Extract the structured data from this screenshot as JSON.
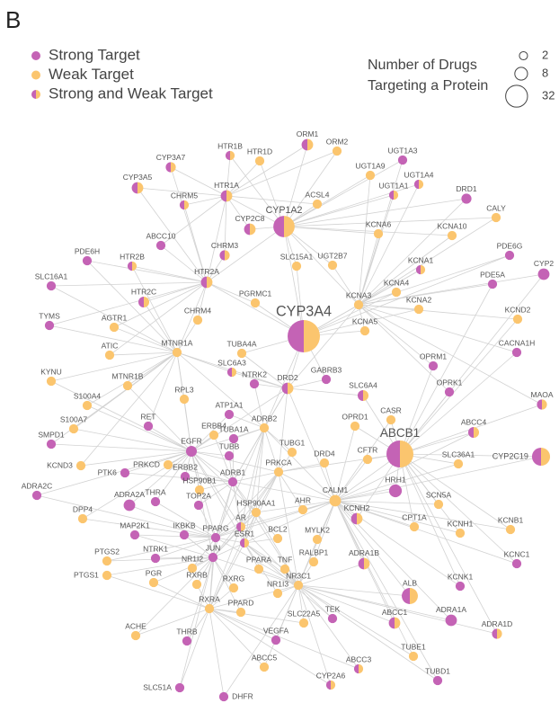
{
  "panel": "B",
  "colors": {
    "strong": "#c463b5",
    "weak": "#fbc56e"
  },
  "legend": {
    "kinds": [
      {
        "label": "Strong Target",
        "kind": "strong"
      },
      {
        "label": "Weak Target",
        "kind": "weak"
      },
      {
        "label": "Strong and Weak Target",
        "kind": "both"
      }
    ],
    "size_title": [
      "Number of Drugs",
      "Targeting a Protein"
    ],
    "sizes": [
      2,
      8,
      32
    ]
  },
  "nodes": [
    {
      "label": "CYP3A7",
      "kind": "both",
      "drugs": 4
    },
    {
      "label": "CYP3A5",
      "kind": "both",
      "drugs": 6
    },
    {
      "label": "HTR1B",
      "kind": "both",
      "drugs": 3
    },
    {
      "label": "HTR1D",
      "kind": "weak",
      "drugs": 3
    },
    {
      "label": "ORM1",
      "kind": "both",
      "drugs": 6
    },
    {
      "label": "ORM2",
      "kind": "weak",
      "drugs": 3
    },
    {
      "label": "UGT1A3",
      "kind": "strong",
      "drugs": 3
    },
    {
      "label": "UGT1A9",
      "kind": "weak",
      "drugs": 3
    },
    {
      "label": "UGT1A4",
      "kind": "both",
      "drugs": 3
    },
    {
      "label": "UGT1A1",
      "kind": "both",
      "drugs": 3
    },
    {
      "label": "DRD1",
      "kind": "strong",
      "drugs": 4
    },
    {
      "label": "CALY",
      "kind": "weak",
      "drugs": 3
    },
    {
      "label": "HTR1A",
      "kind": "both",
      "drugs": 6
    },
    {
      "label": "CHRM5",
      "kind": "both",
      "drugs": 3
    },
    {
      "label": "ACSL4",
      "kind": "weak",
      "drugs": 3
    },
    {
      "label": "CYP1A2",
      "kind": "both",
      "drugs": 30
    },
    {
      "label": "CYP2C8",
      "kind": "both",
      "drugs": 6
    },
    {
      "label": "ABCC10",
      "kind": "strong",
      "drugs": 3
    },
    {
      "label": "CHRM3",
      "kind": "both",
      "drugs": 4
    },
    {
      "label": "KCNA6",
      "kind": "weak",
      "drugs": 3
    },
    {
      "label": "KCNA10",
      "kind": "weak",
      "drugs": 3
    },
    {
      "label": "PDE6G",
      "kind": "strong",
      "drugs": 3
    },
    {
      "label": "CYP2",
      "kind": "strong",
      "drugs": 6
    },
    {
      "label": "PDE6H",
      "kind": "strong",
      "drugs": 3
    },
    {
      "label": "HTR2B",
      "kind": "both",
      "drugs": 3
    },
    {
      "label": "SLC15A1",
      "kind": "weak",
      "drugs": 3
    },
    {
      "label": "UGT2B7",
      "kind": "weak",
      "drugs": 3
    },
    {
      "label": "KCNA1",
      "kind": "both",
      "drugs": 3
    },
    {
      "label": "PDE5A",
      "kind": "strong",
      "drugs": 3
    },
    {
      "label": "SLC16A1",
      "kind": "strong",
      "drugs": 3
    },
    {
      "label": "HTR2A",
      "kind": "both",
      "drugs": 6
    },
    {
      "label": "KCNA4",
      "kind": "weak",
      "drugs": 3
    },
    {
      "label": "HTR2C",
      "kind": "both",
      "drugs": 5
    },
    {
      "label": "PGRMC1",
      "kind": "weak",
      "drugs": 3
    },
    {
      "label": "KCNA3",
      "kind": "weak",
      "drugs": 3
    },
    {
      "label": "KCNA2",
      "kind": "weak",
      "drugs": 3
    },
    {
      "label": "KCND2",
      "kind": "weak",
      "drugs": 3
    },
    {
      "label": "TYMS",
      "kind": "strong",
      "drugs": 3
    },
    {
      "label": "AGTR1",
      "kind": "weak",
      "drugs": 3
    },
    {
      "label": "CHRM4",
      "kind": "weak",
      "drugs": 3
    },
    {
      "label": "CYP3A4",
      "kind": "both",
      "drugs": 79
    },
    {
      "label": "KCNA5",
      "kind": "weak",
      "drugs": 3
    },
    {
      "label": "CACNA1H",
      "kind": "strong",
      "drugs": 3
    },
    {
      "label": "MTNR1A",
      "kind": "weak",
      "drugs": 3
    },
    {
      "label": "TUBA4A",
      "kind": "weak",
      "drugs": 3
    },
    {
      "label": "ATIC",
      "kind": "weak",
      "drugs": 3
    },
    {
      "label": "OPRM1",
      "kind": "strong",
      "drugs": 3
    },
    {
      "label": "KYNU",
      "kind": "weak",
      "drugs": 3
    },
    {
      "label": "MTNR1B",
      "kind": "weak",
      "drugs": 3
    },
    {
      "label": "SLC6A3",
      "kind": "both",
      "drugs": 3
    },
    {
      "label": "NTRK2",
      "kind": "strong",
      "drugs": 3
    },
    {
      "label": "DRD2",
      "kind": "both",
      "drugs": 6
    },
    {
      "label": "GABRB3",
      "kind": "strong",
      "drugs": 3
    },
    {
      "label": "OPRK1",
      "kind": "strong",
      "drugs": 3
    },
    {
      "label": "MAOA",
      "kind": "both",
      "drugs": 4
    },
    {
      "label": "S100A4",
      "kind": "weak",
      "drugs": 3
    },
    {
      "label": "RPL3",
      "kind": "weak",
      "drugs": 3
    },
    {
      "label": "ATP1A1",
      "kind": "strong",
      "drugs": 3
    },
    {
      "label": "SLC6A4",
      "kind": "both",
      "drugs": 5
    },
    {
      "label": "S100A7",
      "kind": "weak",
      "drugs": 3
    },
    {
      "label": "RET",
      "kind": "strong",
      "drugs": 3
    },
    {
      "label": "OPRD1",
      "kind": "weak",
      "drugs": 3
    },
    {
      "label": "CASR",
      "kind": "weak",
      "drugs": 3
    },
    {
      "label": "ABCC4",
      "kind": "both",
      "drugs": 5
    },
    {
      "label": "SMPD1",
      "kind": "strong",
      "drugs": 3
    },
    {
      "label": "ERBB4",
      "kind": "weak",
      "drugs": 3
    },
    {
      "label": "TUBA1A",
      "kind": "strong",
      "drugs": 3
    },
    {
      "label": "ADRB2",
      "kind": "weak",
      "drugs": 3
    },
    {
      "label": "TUBG1",
      "kind": "weak",
      "drugs": 3
    },
    {
      "label": "EGFR",
      "kind": "strong",
      "drugs": 5
    },
    {
      "label": "TUBB",
      "kind": "strong",
      "drugs": 3
    },
    {
      "label": "ABCB1",
      "kind": "both",
      "drugs": 52
    },
    {
      "label": "CYP2C19",
      "kind": "both",
      "drugs": 20
    },
    {
      "label": "PTK6",
      "kind": "strong",
      "drugs": 3
    },
    {
      "label": "PRKCD",
      "kind": "weak",
      "drugs": 3
    },
    {
      "label": "KCND3",
      "kind": "weak",
      "drugs": 3
    },
    {
      "label": "PRKCA",
      "kind": "weak",
      "drugs": 3
    },
    {
      "label": "DRD4",
      "kind": "weak",
      "drugs": 3
    },
    {
      "label": "CFTR",
      "kind": "weak",
      "drugs": 3
    },
    {
      "label": "SLC36A1",
      "kind": "weak",
      "drugs": 3
    },
    {
      "label": "ERBB2",
      "kind": "strong",
      "drugs": 3
    },
    {
      "label": "ADRB1",
      "kind": "strong",
      "drugs": 3
    },
    {
      "label": "HRH1",
      "kind": "strong",
      "drugs": 8
    },
    {
      "label": "HSP90B1",
      "kind": "weak",
      "drugs": 3
    },
    {
      "label": "ADRA2C",
      "kind": "strong",
      "drugs": 3
    },
    {
      "label": "ADRA2A",
      "kind": "strong",
      "drugs": 6
    },
    {
      "label": "THRA",
      "kind": "strong",
      "drugs": 3
    },
    {
      "label": "TOP2A",
      "kind": "strong",
      "drugs": 3
    },
    {
      "label": "CALM1",
      "kind": "weak",
      "drugs": 6
    },
    {
      "label": "SCN5A",
      "kind": "weak",
      "drugs": 3
    },
    {
      "label": "DPP4",
      "kind": "weak",
      "drugs": 3
    },
    {
      "label": "HSP90AA1",
      "kind": "weak",
      "drugs": 3
    },
    {
      "label": "AHR",
      "kind": "weak",
      "drugs": 3
    },
    {
      "label": "AR",
      "kind": "both",
      "drugs": 3
    },
    {
      "label": "KCNH2",
      "kind": "both",
      "drugs": 6
    },
    {
      "label": "CPT1A",
      "kind": "weak",
      "drugs": 3
    },
    {
      "label": "KCNH1",
      "kind": "weak",
      "drugs": 3
    },
    {
      "label": "KCNB1",
      "kind": "weak",
      "drugs": 3
    },
    {
      "label": "MAP2K1",
      "kind": "strong",
      "drugs": 3
    },
    {
      "label": "IKBKB",
      "kind": "strong",
      "drugs": 3
    },
    {
      "label": "PPARG",
      "kind": "strong",
      "drugs": 3
    },
    {
      "label": "ESR1",
      "kind": "both",
      "drugs": 3
    },
    {
      "label": "BCL2",
      "kind": "weak",
      "drugs": 3
    },
    {
      "label": "MYLK2",
      "kind": "weak",
      "drugs": 3
    },
    {
      "label": "RALBP1",
      "kind": "weak",
      "drugs": 3
    },
    {
      "label": "ADRA1B",
      "kind": "both",
      "drugs": 6
    },
    {
      "label": "PTGS1",
      "kind": "weak",
      "drugs": 3
    },
    {
      "label": "PTGS2",
      "kind": "weak",
      "drugs": 3
    },
    {
      "label": "NTRK1",
      "kind": "strong",
      "drugs": 3
    },
    {
      "label": "JUN",
      "kind": "strong",
      "drugs": 3
    },
    {
      "label": "NR1I2",
      "kind": "weak",
      "drugs": 3
    },
    {
      "label": "PPARA",
      "kind": "weak",
      "drugs": 3
    },
    {
      "label": "TNF",
      "kind": "weak",
      "drugs": 3
    },
    {
      "label": "NR3C1",
      "kind": "weak",
      "drugs": 3
    },
    {
      "label": "KCNC1",
      "kind": "strong",
      "drugs": 3
    },
    {
      "label": "PGR",
      "kind": "weak",
      "drugs": 3
    },
    {
      "label": "RXRB",
      "kind": "weak",
      "drugs": 3
    },
    {
      "label": "RXRG",
      "kind": "weak",
      "drugs": 3
    },
    {
      "label": "NR1I3",
      "kind": "weak",
      "drugs": 3
    },
    {
      "label": "KCNK1",
      "kind": "strong",
      "drugs": 3
    },
    {
      "label": "ALB",
      "kind": "both",
      "drugs": 15
    },
    {
      "label": "RXRA",
      "kind": "weak",
      "drugs": 3
    },
    {
      "label": "ABCC1",
      "kind": "both",
      "drugs": 6
    },
    {
      "label": "ADRA1A",
      "kind": "strong",
      "drugs": 6
    },
    {
      "label": "PPARD",
      "kind": "weak",
      "drugs": 3
    },
    {
      "label": "ACHE",
      "kind": "weak",
      "drugs": 3
    },
    {
      "label": "THRB",
      "kind": "strong",
      "drugs": 3
    },
    {
      "label": "SLC22A5",
      "kind": "weak",
      "drugs": 3
    },
    {
      "label": "TEK",
      "kind": "strong",
      "drugs": 3
    },
    {
      "label": "ADRA1D",
      "kind": "both",
      "drugs": 4
    },
    {
      "label": "VEGFA",
      "kind": "strong",
      "drugs": 3
    },
    {
      "label": "TUBE1",
      "kind": "weak",
      "drugs": 3
    },
    {
      "label": "ABCC5",
      "kind": "weak",
      "drugs": 3
    },
    {
      "label": "ABCC3",
      "kind": "both",
      "drugs": 3
    },
    {
      "label": "TUBD1",
      "kind": "strong",
      "drugs": 3
    },
    {
      "label": "SLC51A",
      "kind": "strong",
      "drugs": 3
    },
    {
      "label": "DHFR",
      "kind": "strong",
      "drugs": 3
    },
    {
      "label": "CYP2A6",
      "kind": "both",
      "drugs": 3
    }
  ]
}
